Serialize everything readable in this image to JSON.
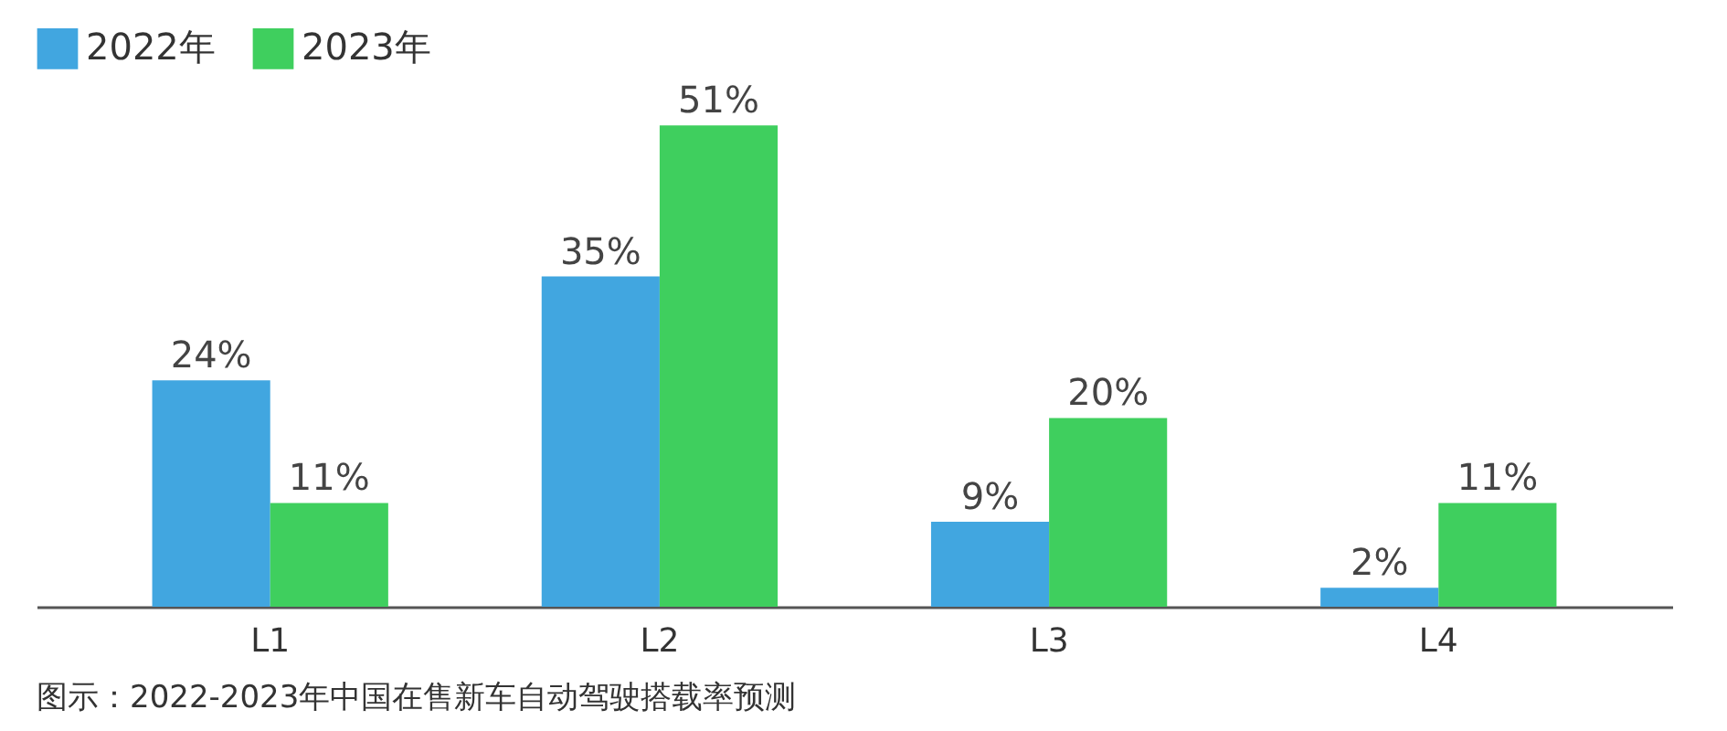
{
  "chart_data": {
    "type": "bar",
    "categories": [
      "L1",
      "L2",
      "L3",
      "L4"
    ],
    "series": [
      {
        "name": "2022年",
        "color": "#41a6e0",
        "values": [
          24,
          35,
          9,
          2
        ],
        "value_labels": [
          "24%",
          "35%",
          "9%",
          "2%"
        ]
      },
      {
        "name": "2023年",
        "color": "#3fcf5e",
        "values": [
          11,
          51,
          20,
          11
        ],
        "value_labels": [
          "11%",
          "51%",
          "20%",
          "11%"
        ]
      }
    ],
    "legend": "top left",
    "grid": false,
    "annotations": [
      "图示：2022-2023年中国在售新车自动驾驶搭载率预测"
    ]
  }
}
